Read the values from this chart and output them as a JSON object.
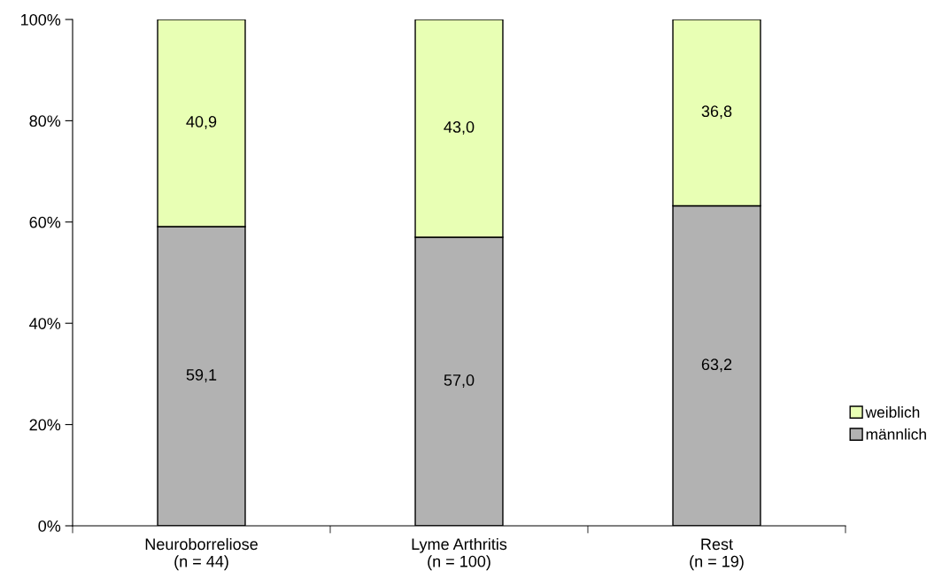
{
  "chart_data": {
    "type": "bar",
    "stacked": true,
    "categories": [
      "Neuroborreliose\n(n = 44)",
      "Lyme Arthritis\n(n = 100)",
      "Rest\n(n = 19)"
    ],
    "series": [
      {
        "name": "männlich",
        "color": "#b2b2b2",
        "values": [
          59.1,
          57.0,
          63.2
        ],
        "value_labels": [
          "59,1",
          "57,0",
          "63,2"
        ]
      },
      {
        "name": "weiblich",
        "color": "#e8ffb4",
        "values": [
          40.9,
          43.0,
          36.8
        ],
        "value_labels": [
          "40,9",
          "43,0",
          "36,8"
        ]
      }
    ],
    "ylim": [
      0,
      100
    ],
    "yticks": [
      {
        "value": 0,
        "label": "0%"
      },
      {
        "value": 20,
        "label": "20%"
      },
      {
        "value": 40,
        "label": "40%"
      },
      {
        "value": 60,
        "label": "60%"
      },
      {
        "value": 80,
        "label": "80%"
      },
      {
        "value": 100,
        "label": "100%"
      }
    ],
    "grid": false,
    "legend": "right"
  }
}
